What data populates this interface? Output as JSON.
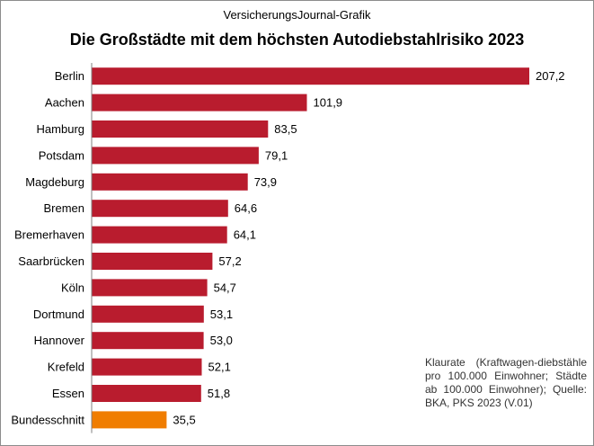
{
  "header": {
    "supertitle": "VersicherungsJournal-Grafik",
    "title": "Die Großstädte mit dem höchsten Autodiebstahlrisiko 2023"
  },
  "note": "Klaurate (Kraftwagen-diebstähle pro 100.000 Einwohner; Städte ab 100.000 Einwohner); Quelle: BKA, PKS 2023 (V.01)",
  "colors": {
    "bar": "#b91c2e",
    "highlight": "#f07d00",
    "axis": "#808080"
  },
  "chart_data": {
    "type": "bar",
    "orientation": "horizontal",
    "categories": [
      "Berlin",
      "Aachen",
      "Hamburg",
      "Potsdam",
      "Magdeburg",
      "Bremen",
      "Bremerhaven",
      "Saarbrücken",
      "Köln",
      "Dortmund",
      "Hannover",
      "Krefeld",
      "Essen",
      "Bundesschnitt"
    ],
    "values": [
      207.2,
      101.9,
      83.5,
      79.1,
      73.9,
      64.6,
      64.1,
      57.2,
      54.7,
      53.1,
      53.0,
      52.1,
      51.8,
      35.5
    ],
    "value_labels": [
      "207,2",
      "101,9",
      "83,5",
      "79,1",
      "73,9",
      "64,6",
      "64,1",
      "57,2",
      "54,7",
      "53,1",
      "53,0",
      "52,1",
      "51,8",
      "35,5"
    ],
    "highlight_category": "Bundesschnitt",
    "xlim": [
      0,
      207.2
    ],
    "grid": false,
    "legend": "none"
  }
}
